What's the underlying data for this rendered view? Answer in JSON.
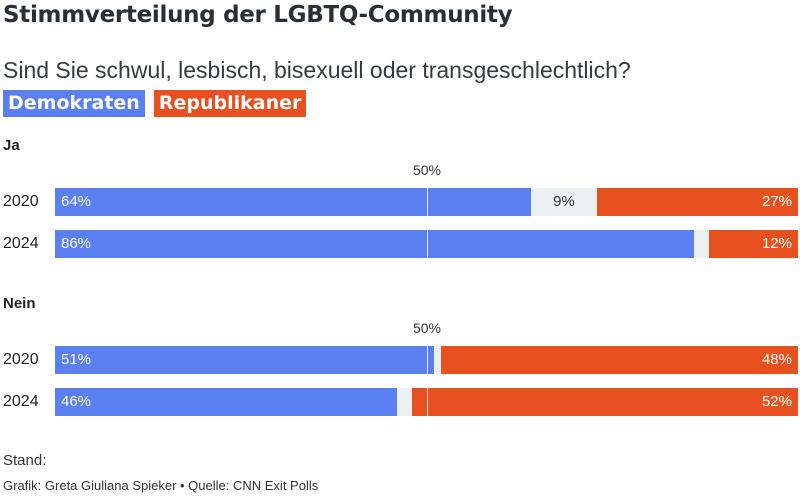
{
  "title": "Stimmverteilung der LGBTQ-Community",
  "subtitle": "Sind Sie schwul, lesbisch, bisexuell oder transgeschlechtlich?",
  "legend": [
    {
      "label": "Demokraten",
      "color": "#5a7ff0"
    },
    {
      "label": "Republikaner",
      "color": "#e8501f"
    }
  ],
  "colors": {
    "dem": "#5a7ff0",
    "rep": "#e8501f",
    "other": "#edf0f2"
  },
  "midpoint_label": "50%",
  "footer": {
    "stand": "Stand:",
    "credit": "Grafik: Greta Giuliana Spieker • Quelle: CNN Exit Polls"
  },
  "chart_data": {
    "type": "bar",
    "orientation": "horizontal-stacked",
    "title": "Stimmverteilung der LGBTQ-Community",
    "subtitle": "Sind Sie schwul, lesbisch, bisexuell oder transgeschlechtlich?",
    "series": [
      {
        "name": "Demokraten"
      },
      {
        "name": "Republikaner"
      }
    ],
    "groups": [
      {
        "name": "Ja",
        "rows": [
          {
            "year": "2020",
            "dem": 64,
            "other": 9,
            "other_label": "9%",
            "rep": 27,
            "dem_label": "64%",
            "rep_label": "27%"
          },
          {
            "year": "2024",
            "dem": 86,
            "other": 2,
            "other_label": "",
            "rep": 12,
            "dem_label": "86%",
            "rep_label": "12%"
          }
        ]
      },
      {
        "name": "Nein",
        "rows": [
          {
            "year": "2020",
            "dem": 51,
            "other": 1,
            "other_label": "",
            "rep": 48,
            "dem_label": "51%",
            "rep_label": "48%"
          },
          {
            "year": "2024",
            "dem": 46,
            "other": 2,
            "other_label": "",
            "rep": 52,
            "dem_label": "46%",
            "rep_label": "52%"
          }
        ]
      }
    ],
    "xlim": [
      0,
      100
    ],
    "reference_line": 50
  }
}
